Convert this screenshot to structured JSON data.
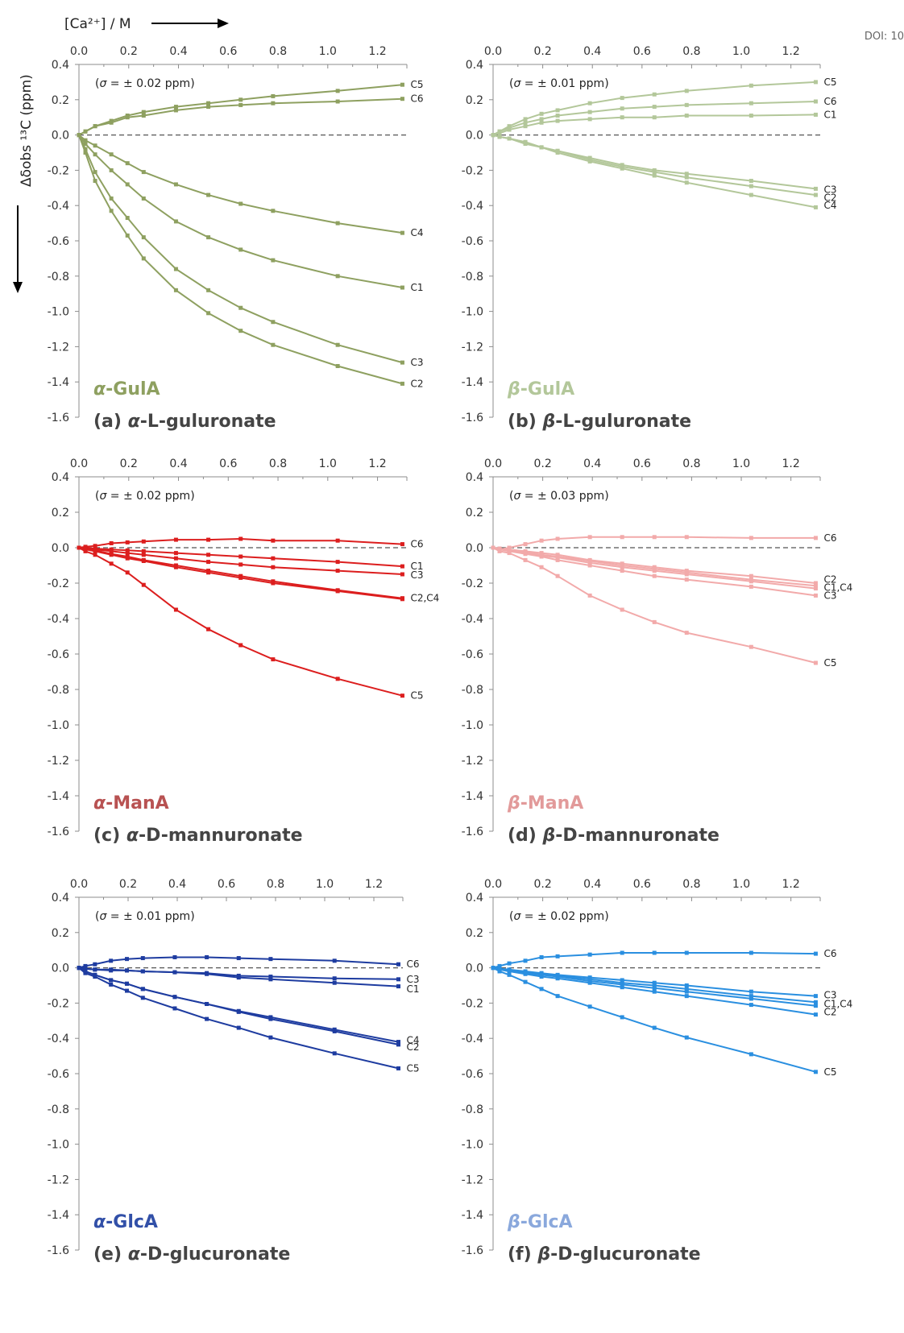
{
  "doi_fragment": "DOI: 10",
  "x_axis_label": "[Ca²⁺] / M",
  "y_axis_label": "Δδobs ¹³C (ppm)",
  "chart_data": [
    {
      "type": "line",
      "panel": "a",
      "caption": "(a) α-L-guluronate",
      "watermark": "α-GulA",
      "sigma": "(σ = ± 0.02 ppm)",
      "xlim": [
        0,
        1.3
      ],
      "ylim": [
        -1.6,
        0.4
      ],
      "xticks": [
        "0.0",
        "0.2",
        "0.4",
        "0.6",
        "0.8",
        "1.0",
        "1.2"
      ],
      "yticks": [
        "0.4",
        "0.2",
        "0.0",
        "-0.2",
        "-0.4",
        "-0.6",
        "-0.8",
        "-1.0",
        "-1.2",
        "-1.4",
        "-1.6"
      ],
      "color": "#8ea060",
      "label_color": "#8ea060",
      "x": [
        0,
        0.026,
        0.065,
        0.13,
        0.195,
        0.26,
        0.39,
        0.52,
        0.65,
        0.78,
        1.04,
        1.3
      ],
      "series": [
        {
          "name": "C5",
          "values": [
            0,
            0.02,
            0.05,
            0.08,
            0.11,
            0.13,
            0.16,
            0.18,
            0.2,
            0.22,
            0.25,
            0.285
          ]
        },
        {
          "name": "C6",
          "values": [
            0,
            0.02,
            0.05,
            0.07,
            0.1,
            0.11,
            0.14,
            0.16,
            0.17,
            0.18,
            0.19,
            0.205
          ]
        },
        {
          "name": "C4",
          "values": [
            0,
            -0.03,
            -0.06,
            -0.11,
            -0.16,
            -0.21,
            -0.28,
            -0.34,
            -0.39,
            -0.43,
            -0.5,
            -0.555
          ]
        },
        {
          "name": "C1",
          "values": [
            0,
            -0.05,
            -0.11,
            -0.2,
            -0.28,
            -0.36,
            -0.49,
            -0.58,
            -0.65,
            -0.71,
            -0.8,
            -0.865
          ]
        },
        {
          "name": "C3",
          "values": [
            0,
            -0.08,
            -0.21,
            -0.36,
            -0.47,
            -0.58,
            -0.76,
            -0.88,
            -0.98,
            -1.06,
            -1.19,
            -1.29
          ]
        },
        {
          "name": "C2",
          "values": [
            0,
            -0.1,
            -0.26,
            -0.43,
            -0.57,
            -0.7,
            -0.88,
            -1.01,
            -1.11,
            -1.19,
            -1.31,
            -1.41
          ]
        }
      ],
      "end_labels": [
        {
          "text": "C5",
          "y": 0.285
        },
        {
          "text": "C6",
          "y": 0.205
        },
        {
          "text": "C4",
          "y": -0.555
        },
        {
          "text": "C1",
          "y": -0.865
        },
        {
          "text": "C3",
          "y": -1.29
        },
        {
          "text": "C2",
          "y": -1.41
        }
      ]
    },
    {
      "type": "line",
      "panel": "b",
      "caption": "(b) β-L-guluronate",
      "watermark": "β-GulA",
      "sigma": "(σ = ± 0.01 ppm)",
      "xlim": [
        0,
        1.3
      ],
      "ylim": [
        -1.6,
        0.4
      ],
      "xticks": [
        "0.0",
        "0.2",
        "0.4",
        "0.6",
        "0.8",
        "1.0",
        "1.2"
      ],
      "yticks": [
        "0.4",
        "0.2",
        "0.0",
        "-0.2",
        "-0.4",
        "-0.6",
        "-0.8",
        "-1.0",
        "-1.2",
        "-1.4",
        "-1.6"
      ],
      "color": "#b3c79a",
      "label_color": "#b3c79a",
      "x": [
        0,
        0.026,
        0.065,
        0.13,
        0.195,
        0.26,
        0.39,
        0.52,
        0.65,
        0.78,
        1.04,
        1.3
      ],
      "series": [
        {
          "name": "C5",
          "values": [
            0,
            0.02,
            0.05,
            0.09,
            0.12,
            0.14,
            0.18,
            0.21,
            0.23,
            0.25,
            0.28,
            0.3
          ]
        },
        {
          "name": "C6",
          "values": [
            0,
            0.02,
            0.04,
            0.07,
            0.09,
            0.11,
            0.13,
            0.15,
            0.16,
            0.17,
            0.18,
            0.19
          ]
        },
        {
          "name": "C1",
          "values": [
            0,
            0.01,
            0.03,
            0.05,
            0.07,
            0.08,
            0.09,
            0.1,
            0.1,
            0.11,
            0.11,
            0.115
          ]
        },
        {
          "name": "C3",
          "values": [
            0,
            -0.01,
            -0.02,
            -0.04,
            -0.07,
            -0.09,
            -0.13,
            -0.17,
            -0.2,
            -0.22,
            -0.26,
            -0.305
          ]
        },
        {
          "name": "C2",
          "values": [
            0,
            -0.01,
            -0.02,
            -0.04,
            -0.07,
            -0.09,
            -0.14,
            -0.18,
            -0.21,
            -0.24,
            -0.29,
            -0.34
          ]
        },
        {
          "name": "C4",
          "values": [
            0,
            -0.01,
            -0.02,
            -0.05,
            -0.07,
            -0.1,
            -0.15,
            -0.19,
            -0.23,
            -0.27,
            -0.34,
            -0.41
          ]
        }
      ],
      "end_labels": [
        {
          "text": "C5",
          "y": 0.3
        },
        {
          "text": "C6",
          "y": 0.19
        },
        {
          "text": "C1",
          "y": 0.115
        },
        {
          "text": "C3",
          "y": -0.31
        },
        {
          "text": "C2",
          "y": -0.355
        },
        {
          "text": "C4",
          "y": -0.4
        }
      ]
    },
    {
      "type": "line",
      "panel": "c",
      "caption": "(c) α-D-mannuronate",
      "watermark": "α-ManA",
      "sigma": "(σ = ± 0.02 ppm)",
      "xlim": [
        0,
        1.3
      ],
      "ylim": [
        -1.6,
        0.4
      ],
      "xticks": [
        "0.0",
        "0.2",
        "0.4",
        "0.6",
        "0.8",
        "1.0",
        "1.2"
      ],
      "yticks": [
        "0.4",
        "0.2",
        "0.0",
        "-0.2",
        "-0.4",
        "-0.6",
        "-0.8",
        "-1.0",
        "-1.2",
        "-1.4",
        "-1.6"
      ],
      "color": "#dc1e1e",
      "label_color": "#b85252",
      "x": [
        0,
        0.026,
        0.065,
        0.13,
        0.195,
        0.26,
        0.39,
        0.52,
        0.65,
        0.78,
        1.04,
        1.3
      ],
      "series": [
        {
          "name": "C6",
          "values": [
            0,
            0.005,
            0.01,
            0.025,
            0.03,
            0.035,
            0.045,
            0.045,
            0.05,
            0.04,
            0.04,
            0.02
          ]
        },
        {
          "name": "C1",
          "values": [
            0,
            0,
            -0.005,
            -0.01,
            -0.015,
            -0.02,
            -0.03,
            -0.04,
            -0.05,
            -0.06,
            -0.08,
            -0.105
          ]
        },
        {
          "name": "C3",
          "values": [
            0,
            -0.005,
            -0.01,
            -0.02,
            -0.03,
            -0.04,
            -0.06,
            -0.08,
            -0.095,
            -0.11,
            -0.13,
            -0.15
          ]
        },
        {
          "name": "C2",
          "values": [
            0,
            -0.01,
            -0.02,
            -0.04,
            -0.06,
            -0.075,
            -0.11,
            -0.14,
            -0.17,
            -0.2,
            -0.245,
            -0.29
          ]
        },
        {
          "name": "C4",
          "values": [
            0,
            -0.01,
            -0.015,
            -0.035,
            -0.05,
            -0.07,
            -0.1,
            -0.13,
            -0.16,
            -0.19,
            -0.24,
            -0.285
          ]
        },
        {
          "name": "C5",
          "values": [
            0,
            -0.02,
            -0.04,
            -0.09,
            -0.14,
            -0.21,
            -0.35,
            -0.46,
            -0.55,
            -0.63,
            -0.74,
            -0.835
          ]
        }
      ],
      "end_labels": [
        {
          "text": "C6",
          "y": 0.02
        },
        {
          "text": "C1",
          "y": -0.105
        },
        {
          "text": "C3",
          "y": -0.155
        },
        {
          "text": "C2,C4",
          "y": -0.285
        },
        {
          "text": "C5",
          "y": -0.835
        }
      ]
    },
    {
      "type": "line",
      "panel": "d",
      "caption": "(d) β-D-mannuronate",
      "watermark": "β-ManA",
      "sigma": "(σ = ± 0.03 ppm)",
      "xlim": [
        0,
        1.3
      ],
      "ylim": [
        -1.6,
        0.4
      ],
      "xticks": [
        "0.0",
        "0.2",
        "0.4",
        "0.6",
        "0.8",
        "1.0",
        "1.2"
      ],
      "yticks": [
        "0.4",
        "0.2",
        "0.0",
        "-0.2",
        "-0.4",
        "-0.6",
        "-0.8",
        "-1.0",
        "-1.2",
        "-1.4",
        "-1.6"
      ],
      "color": "#f2aaaa",
      "label_color": "#e29a9a",
      "x": [
        0,
        0.026,
        0.065,
        0.13,
        0.195,
        0.26,
        0.39,
        0.52,
        0.65,
        0.78,
        1.04,
        1.3
      ],
      "series": [
        {
          "name": "C6",
          "values": [
            0,
            -0.01,
            0,
            0.02,
            0.04,
            0.05,
            0.06,
            0.06,
            0.06,
            0.06,
            0.055,
            0.055
          ]
        },
        {
          "name": "C2",
          "values": [
            0,
            -0.005,
            -0.01,
            -0.02,
            -0.03,
            -0.04,
            -0.07,
            -0.09,
            -0.11,
            -0.13,
            -0.16,
            -0.2
          ]
        },
        {
          "name": "C1",
          "values": [
            0,
            -0.005,
            -0.01,
            -0.025,
            -0.04,
            -0.05,
            -0.075,
            -0.1,
            -0.12,
            -0.14,
            -0.18,
            -0.215
          ]
        },
        {
          "name": "C4",
          "values": [
            0,
            -0.01,
            -0.015,
            -0.03,
            -0.045,
            -0.055,
            -0.085,
            -0.11,
            -0.13,
            -0.15,
            -0.19,
            -0.23
          ]
        },
        {
          "name": "C3",
          "values": [
            0,
            -0.01,
            -0.02,
            -0.035,
            -0.05,
            -0.07,
            -0.1,
            -0.13,
            -0.16,
            -0.18,
            -0.22,
            -0.27
          ]
        },
        {
          "name": "C5",
          "values": [
            0,
            -0.02,
            -0.03,
            -0.07,
            -0.11,
            -0.16,
            -0.27,
            -0.35,
            -0.42,
            -0.48,
            -0.56,
            -0.65
          ]
        }
      ],
      "end_labels": [
        {
          "text": "C6",
          "y": 0.055
        },
        {
          "text": "C2",
          "y": -0.18
        },
        {
          "text": "C1,C4",
          "y": -0.225
        },
        {
          "text": "C3",
          "y": -0.27
        },
        {
          "text": "C5",
          "y": -0.65
        }
      ]
    },
    {
      "type": "line",
      "panel": "e",
      "caption": "(e) α-D-glucuronate",
      "watermark": "α-GlcA",
      "sigma": "(σ = ± 0.01 ppm)",
      "xlim": [
        0,
        1.3
      ],
      "ylim": [
        -1.6,
        0.4
      ],
      "xticks": [
        "0.0",
        "0.2",
        "0.4",
        "0.6",
        "0.8",
        "1.0",
        "1.2"
      ],
      "yticks": [
        "0.4",
        "0.2",
        "0.0",
        "-0.2",
        "-0.4",
        "-0.6",
        "-0.8",
        "-1.0",
        "-1.2",
        "-1.4",
        "-1.6"
      ],
      "color": "#1e3ca0",
      "label_color": "#3250a8",
      "x": [
        0,
        0.026,
        0.065,
        0.13,
        0.195,
        0.26,
        0.39,
        0.52,
        0.65,
        0.78,
        1.04,
        1.3
      ],
      "series": [
        {
          "name": "C6",
          "values": [
            0,
            0.01,
            0.02,
            0.04,
            0.05,
            0.055,
            0.06,
            0.06,
            0.055,
            0.05,
            0.04,
            0.02
          ]
        },
        {
          "name": "C3",
          "values": [
            0,
            -0.005,
            -0.01,
            -0.01,
            -0.015,
            -0.02,
            -0.025,
            -0.03,
            -0.045,
            -0.05,
            -0.06,
            -0.065
          ]
        },
        {
          "name": "C1",
          "values": [
            0,
            -0.005,
            -0.01,
            -0.015,
            -0.015,
            -0.02,
            -0.025,
            -0.035,
            -0.055,
            -0.065,
            -0.085,
            -0.105
          ]
        },
        {
          "name": "C4",
          "values": [
            0,
            -0.02,
            -0.04,
            -0.07,
            -0.09,
            -0.12,
            -0.165,
            -0.205,
            -0.245,
            -0.28,
            -0.35,
            -0.42
          ]
        },
        {
          "name": "C2",
          "values": [
            0,
            -0.02,
            -0.04,
            -0.07,
            -0.09,
            -0.12,
            -0.165,
            -0.205,
            -0.25,
            -0.29,
            -0.36,
            -0.435
          ]
        },
        {
          "name": "C5",
          "values": [
            0,
            -0.03,
            -0.05,
            -0.095,
            -0.13,
            -0.17,
            -0.23,
            -0.29,
            -0.34,
            -0.395,
            -0.485,
            -0.57
          ]
        }
      ],
      "end_labels": [
        {
          "text": "C6",
          "y": 0.02
        },
        {
          "text": "C3",
          "y": -0.065
        },
        {
          "text": "C1",
          "y": -0.12
        },
        {
          "text": "C4",
          "y": -0.41
        },
        {
          "text": "C2",
          "y": -0.45
        },
        {
          "text": "C5",
          "y": -0.57
        }
      ]
    },
    {
      "type": "line",
      "panel": "f",
      "caption": "(f) β-D-glucuronate",
      "watermark": "β-GlcA",
      "sigma": "(σ = ± 0.02 ppm)",
      "xlim": [
        0,
        1.3
      ],
      "ylim": [
        -1.6,
        0.4
      ],
      "xticks": [
        "0.0",
        "0.2",
        "0.4",
        "0.6",
        "0.8",
        "1.0",
        "1.2"
      ],
      "yticks": [
        "0.4",
        "0.2",
        "0.0",
        "-0.2",
        "-0.4",
        "-0.6",
        "-0.8",
        "-1.0",
        "-1.2",
        "-1.4",
        "-1.6"
      ],
      "color": "#2a8fe0",
      "label_color": "#8aa8dc",
      "x": [
        0,
        0.026,
        0.065,
        0.13,
        0.195,
        0.26,
        0.39,
        0.52,
        0.65,
        0.78,
        1.04,
        1.3
      ],
      "series": [
        {
          "name": "C6",
          "values": [
            0,
            0.01,
            0.025,
            0.04,
            0.06,
            0.065,
            0.075,
            0.085,
            0.085,
            0.085,
            0.085,
            0.08
          ]
        },
        {
          "name": "C3",
          "values": [
            0,
            -0.005,
            -0.01,
            -0.02,
            -0.03,
            -0.04,
            -0.055,
            -0.07,
            -0.085,
            -0.1,
            -0.135,
            -0.16
          ]
        },
        {
          "name": "C1",
          "values": [
            0,
            -0.005,
            -0.015,
            -0.025,
            -0.035,
            -0.045,
            -0.065,
            -0.085,
            -0.1,
            -0.12,
            -0.16,
            -0.195
          ]
        },
        {
          "name": "C4",
          "values": [
            0,
            -0.005,
            -0.015,
            -0.03,
            -0.04,
            -0.05,
            -0.075,
            -0.095,
            -0.115,
            -0.135,
            -0.175,
            -0.215
          ]
        },
        {
          "name": "C2",
          "values": [
            0,
            -0.01,
            -0.02,
            -0.035,
            -0.05,
            -0.06,
            -0.085,
            -0.11,
            -0.135,
            -0.16,
            -0.21,
            -0.265
          ]
        },
        {
          "name": "C5",
          "values": [
            0,
            -0.02,
            -0.04,
            -0.08,
            -0.12,
            -0.16,
            -0.22,
            -0.28,
            -0.34,
            -0.395,
            -0.49,
            -0.59
          ]
        }
      ],
      "end_labels": [
        {
          "text": "C6",
          "y": 0.08
        },
        {
          "text": "C3",
          "y": -0.155
        },
        {
          "text": "C1,C4",
          "y": -0.205
        },
        {
          "text": "C2",
          "y": -0.25
        },
        {
          "text": "C5",
          "y": -0.59
        }
      ]
    }
  ]
}
